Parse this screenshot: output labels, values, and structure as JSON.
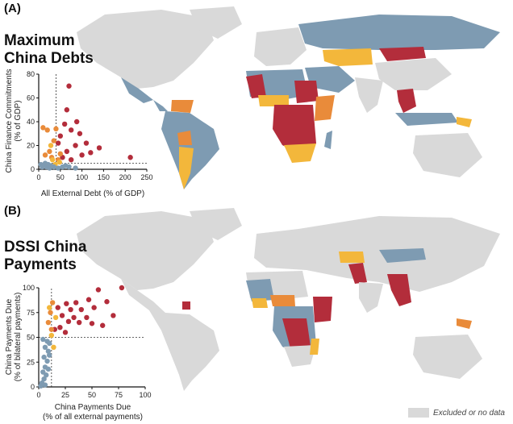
{
  "panels": {
    "a": {
      "label": "(A)",
      "title_line1": "Maximum",
      "title_line2": "China Debts"
    },
    "b": {
      "label": "(B)",
      "title_line1": "DSSI China",
      "title_line2": "Payments"
    }
  },
  "legend": {
    "label": "Excluded or no data",
    "color": "#d9d9d9"
  },
  "colors": {
    "red": "#b32d3b",
    "orange": "#e98b3a",
    "yellow": "#f3b73b",
    "blue": "#7e9bb2",
    "grey": "#d9d9d9"
  },
  "chart_data": [
    {
      "type": "scatter",
      "xlabel": "All External Debt (% of GDP)",
      "ylabel_line1": "China Finance Commitments",
      "ylabel_line2": "(% of GDP)",
      "xlim": [
        0,
        250
      ],
      "ylim": [
        0,
        80
      ],
      "xticks": [
        0,
        50,
        100,
        150,
        200,
        250
      ],
      "yticks": [
        0,
        20,
        40,
        60,
        80
      ],
      "ref_x": 40,
      "ref_y": 5,
      "points": [
        {
          "x": 70,
          "y": 70,
          "c": "red"
        },
        {
          "x": 65,
          "y": 50,
          "c": "red"
        },
        {
          "x": 88,
          "y": 40,
          "c": "red"
        },
        {
          "x": 60,
          "y": 38,
          "c": "red"
        },
        {
          "x": 75,
          "y": 33,
          "c": "red"
        },
        {
          "x": 95,
          "y": 30,
          "c": "red"
        },
        {
          "x": 50,
          "y": 28,
          "c": "red"
        },
        {
          "x": 110,
          "y": 22,
          "c": "red"
        },
        {
          "x": 85,
          "y": 20,
          "c": "red"
        },
        {
          "x": 45,
          "y": 22,
          "c": "red"
        },
        {
          "x": 140,
          "y": 18,
          "c": "red"
        },
        {
          "x": 65,
          "y": 15,
          "c": "red"
        },
        {
          "x": 100,
          "y": 12,
          "c": "red"
        },
        {
          "x": 212,
          "y": 10,
          "c": "red"
        },
        {
          "x": 55,
          "y": 10,
          "c": "red"
        },
        {
          "x": 120,
          "y": 14,
          "c": "red"
        },
        {
          "x": 75,
          "y": 8,
          "c": "red"
        },
        {
          "x": 10,
          "y": 35,
          "c": "orange"
        },
        {
          "x": 20,
          "y": 33,
          "c": "orange"
        },
        {
          "x": 40,
          "y": 34,
          "c": "orange"
        },
        {
          "x": 35,
          "y": 24,
          "c": "orange"
        },
        {
          "x": 25,
          "y": 15,
          "c": "orange"
        },
        {
          "x": 50,
          "y": 13,
          "c": "orange"
        },
        {
          "x": 30,
          "y": 10,
          "c": "orange"
        },
        {
          "x": 45,
          "y": 8,
          "c": "orange"
        },
        {
          "x": 15,
          "y": 12,
          "c": "orange"
        },
        {
          "x": 28,
          "y": 20,
          "c": "yellow"
        },
        {
          "x": 32,
          "y": 8,
          "c": "yellow"
        },
        {
          "x": 48,
          "y": 6,
          "c": "yellow"
        },
        {
          "x": 38,
          "y": 4,
          "c": "yellow"
        },
        {
          "x": 5,
          "y": 4,
          "c": "blue"
        },
        {
          "x": 12,
          "y": 3,
          "c": "blue"
        },
        {
          "x": 18,
          "y": 2,
          "c": "blue"
        },
        {
          "x": 22,
          "y": 4,
          "c": "blue"
        },
        {
          "x": 28,
          "y": 3,
          "c": "blue"
        },
        {
          "x": 35,
          "y": 2,
          "c": "blue"
        },
        {
          "x": 45,
          "y": 1,
          "c": "blue"
        },
        {
          "x": 55,
          "y": 2,
          "c": "blue"
        },
        {
          "x": 62,
          "y": 3,
          "c": "blue"
        },
        {
          "x": 70,
          "y": 2,
          "c": "blue"
        },
        {
          "x": 85,
          "y": 1,
          "c": "blue"
        },
        {
          "x": 8,
          "y": 2,
          "c": "blue"
        },
        {
          "x": 15,
          "y": 5,
          "c": "blue"
        },
        {
          "x": 25,
          "y": 1,
          "c": "blue"
        }
      ]
    },
    {
      "type": "scatter",
      "xlabel_line1": "China Payments Due",
      "xlabel_line2": "(% of all external payments)",
      "ylabel_line1": "China Payments Due",
      "ylabel_line2": "(% of bilateral payments)",
      "xlim": [
        0,
        100
      ],
      "ylim": [
        0,
        100
      ],
      "xticks": [
        0,
        25,
        50,
        75,
        100
      ],
      "yticks": [
        0,
        25,
        50,
        75,
        100
      ],
      "ref_x": 12,
      "ref_y": 50,
      "points": [
        {
          "x": 56,
          "y": 98,
          "c": "red"
        },
        {
          "x": 78,
          "y": 100,
          "c": "red"
        },
        {
          "x": 64,
          "y": 86,
          "c": "red"
        },
        {
          "x": 47,
          "y": 88,
          "c": "red"
        },
        {
          "x": 35,
          "y": 85,
          "c": "red"
        },
        {
          "x": 26,
          "y": 84,
          "c": "red"
        },
        {
          "x": 30,
          "y": 78,
          "c": "red"
        },
        {
          "x": 40,
          "y": 78,
          "c": "red"
        },
        {
          "x": 52,
          "y": 80,
          "c": "red"
        },
        {
          "x": 18,
          "y": 80,
          "c": "red"
        },
        {
          "x": 22,
          "y": 72,
          "c": "red"
        },
        {
          "x": 33,
          "y": 70,
          "c": "red"
        },
        {
          "x": 45,
          "y": 70,
          "c": "red"
        },
        {
          "x": 70,
          "y": 72,
          "c": "red"
        },
        {
          "x": 28,
          "y": 66,
          "c": "red"
        },
        {
          "x": 38,
          "y": 65,
          "c": "red"
        },
        {
          "x": 50,
          "y": 64,
          "c": "red"
        },
        {
          "x": 60,
          "y": 62,
          "c": "red"
        },
        {
          "x": 20,
          "y": 60,
          "c": "red"
        },
        {
          "x": 15,
          "y": 58,
          "c": "red"
        },
        {
          "x": 25,
          "y": 55,
          "c": "red"
        },
        {
          "x": 13,
          "y": 85,
          "c": "orange"
        },
        {
          "x": 11,
          "y": 75,
          "c": "orange"
        },
        {
          "x": 9,
          "y": 65,
          "c": "orange"
        },
        {
          "x": 12,
          "y": 58,
          "c": "orange"
        },
        {
          "x": 10,
          "y": 80,
          "c": "yellow"
        },
        {
          "x": 16,
          "y": 70,
          "c": "yellow"
        },
        {
          "x": 12,
          "y": 52,
          "c": "yellow"
        },
        {
          "x": 14,
          "y": 40,
          "c": "yellow"
        },
        {
          "x": 4,
          "y": 48,
          "c": "blue"
        },
        {
          "x": 8,
          "y": 46,
          "c": "blue"
        },
        {
          "x": 10,
          "y": 44,
          "c": "blue"
        },
        {
          "x": 6,
          "y": 40,
          "c": "blue"
        },
        {
          "x": 9,
          "y": 36,
          "c": "blue"
        },
        {
          "x": 5,
          "y": 30,
          "c": "blue"
        },
        {
          "x": 8,
          "y": 26,
          "c": "blue"
        },
        {
          "x": 6,
          "y": 20,
          "c": "blue"
        },
        {
          "x": 9,
          "y": 18,
          "c": "blue"
        },
        {
          "x": 4,
          "y": 15,
          "c": "blue"
        },
        {
          "x": 7,
          "y": 12,
          "c": "blue"
        },
        {
          "x": 5,
          "y": 8,
          "c": "blue"
        },
        {
          "x": 3,
          "y": 4,
          "c": "blue"
        },
        {
          "x": 6,
          "y": 2,
          "c": "blue"
        },
        {
          "x": 2,
          "y": 1,
          "c": "blue"
        },
        {
          "x": 10,
          "y": 32,
          "c": "blue"
        }
      ]
    }
  ]
}
